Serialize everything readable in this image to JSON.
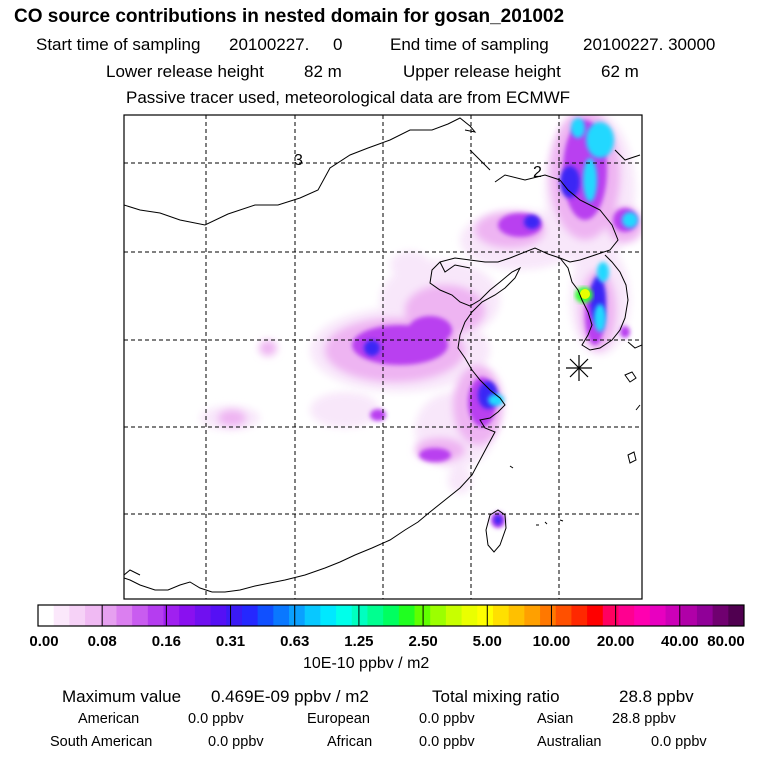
{
  "title": "CO  source contributions in nested domain for gosan_201002",
  "sampling": {
    "start_label": "Start time of sampling",
    "start_value": "20100227.     0",
    "end_label": "End time of sampling",
    "end_value": "20100227. 30000"
  },
  "release": {
    "lower_label": "Lower release height",
    "lower_value": "82 m",
    "upper_label": "Upper release height",
    "upper_value": "62 m"
  },
  "note": "Passive tracer used, meteorological data are from ECMWF",
  "map_labels": {
    "contour_3": "3",
    "contour_2": "2"
  },
  "colorbar": {
    "unit": "10E-10 ppbv / m2",
    "tick_labels": [
      "0.00",
      "0.08",
      "0.16",
      "0.31",
      "0.63",
      "1.25",
      "2.50",
      "5.00",
      "10.00",
      "20.00",
      "40.00",
      "80.00"
    ],
    "colors": [
      "#ffffff",
      "#fbe8fb",
      "#f6d2f7",
      "#f0baf3",
      "#e6a0f0",
      "#db7ff0",
      "#c95cf0",
      "#b53df0",
      "#a020f0",
      "#8a10f0",
      "#7010f0",
      "#5510f5",
      "#3b1af5",
      "#2528ff",
      "#1050ff",
      "#0a78ff",
      "#0aa0ff",
      "#08c8ff",
      "#00e8ff",
      "#00ffea",
      "#00ffc0",
      "#00ff90",
      "#00ff60",
      "#20ff20",
      "#60ff00",
      "#9cff00",
      "#c8ff00",
      "#eaff00",
      "#ffff00",
      "#ffe000",
      "#ffc000",
      "#ffa000",
      "#ff7800",
      "#ff5000",
      "#ff2800",
      "#ff0000",
      "#ff0060",
      "#ff0090",
      "#ff00b0",
      "#e800c0",
      "#cc00b8",
      "#b000a8",
      "#900098",
      "#700070",
      "#500050"
    ]
  },
  "stats": {
    "max_label": "Maximum value",
    "max_value": "0.469E-09 ppbv / m2",
    "total_label": "Total mixing ratio",
    "total_value": "28.8 ppbv"
  },
  "regions": [
    {
      "name": "American",
      "value": "0.0 ppbv"
    },
    {
      "name": "European",
      "value": "0.0 ppbv"
    },
    {
      "name": "Asian",
      "value": "28.8 ppbv"
    },
    {
      "name": "South American",
      "value": "0.0 ppbv"
    },
    {
      "name": "African",
      "value": "0.0 ppbv"
    },
    {
      "name": "Australian",
      "value": "0.0 ppbv"
    }
  ]
}
